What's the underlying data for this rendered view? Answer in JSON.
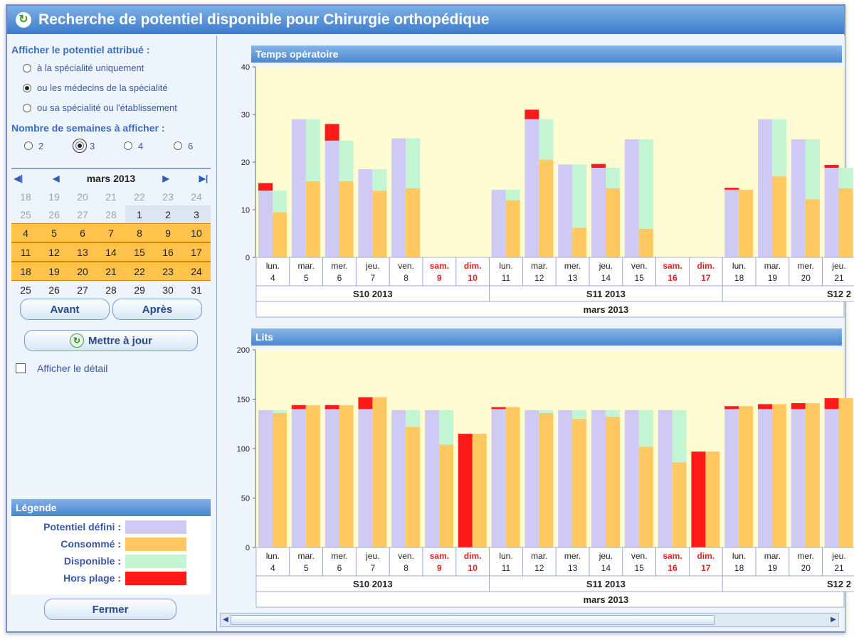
{
  "window": {
    "title": "Recherche de potentiel disponible pour Chirurgie orthopédique"
  },
  "filters": {
    "afficher_title": "Afficher le potentiel attribué :",
    "options": [
      {
        "label": "à la spécialité uniquement",
        "selected": false
      },
      {
        "label": "ou les médecins de la spécialité",
        "selected": true
      },
      {
        "label": "ou sa spécialité ou l'établissement",
        "selected": false
      }
    ],
    "weeks_title": "Nombre de semaines à afficher :",
    "weeks": [
      {
        "label": "2",
        "selected": false
      },
      {
        "label": "3",
        "selected": true
      },
      {
        "label": "4",
        "selected": false
      },
      {
        "label": "6",
        "selected": false
      }
    ]
  },
  "calendar": {
    "month": "mars 2013",
    "nav": [
      "first",
      "prev",
      "next",
      "last"
    ],
    "rows": [
      [
        {
          "d": "18",
          "s": "muted"
        },
        {
          "d": "19",
          "s": "muted"
        },
        {
          "d": "20",
          "s": "muted"
        },
        {
          "d": "21",
          "s": "muted"
        },
        {
          "d": "22",
          "s": "muted"
        },
        {
          "d": "23",
          "s": "muted"
        },
        {
          "d": "24",
          "s": "muted"
        }
      ],
      [
        {
          "d": "25",
          "s": "muted"
        },
        {
          "d": "26",
          "s": "muted"
        },
        {
          "d": "27",
          "s": "muted"
        },
        {
          "d": "28",
          "s": "muted"
        },
        {
          "d": "1",
          "s": "pre"
        },
        {
          "d": "2",
          "s": "pre"
        },
        {
          "d": "3",
          "s": "pre"
        }
      ],
      [
        {
          "d": "4",
          "s": "cur"
        },
        {
          "d": "5",
          "s": "cur"
        },
        {
          "d": "6",
          "s": "cur"
        },
        {
          "d": "7",
          "s": "cur"
        },
        {
          "d": "8",
          "s": "cur"
        },
        {
          "d": "9",
          "s": "cur"
        },
        {
          "d": "10",
          "s": "cur"
        }
      ],
      [
        {
          "d": "11",
          "s": "cur"
        },
        {
          "d": "12",
          "s": "cur"
        },
        {
          "d": "13",
          "s": "cur"
        },
        {
          "d": "14",
          "s": "cur"
        },
        {
          "d": "15",
          "s": "cur"
        },
        {
          "d": "16",
          "s": "cur"
        },
        {
          "d": "17",
          "s": "cur"
        }
      ],
      [
        {
          "d": "18",
          "s": "cur"
        },
        {
          "d": "19",
          "s": "cur"
        },
        {
          "d": "20",
          "s": "cur"
        },
        {
          "d": "21",
          "s": "cur"
        },
        {
          "d": "22",
          "s": "cur"
        },
        {
          "d": "23",
          "s": "cur"
        },
        {
          "d": "24",
          "s": "cur"
        }
      ],
      [
        {
          "d": "25",
          "s": "normal"
        },
        {
          "d": "26",
          "s": "normal"
        },
        {
          "d": "27",
          "s": "normal"
        },
        {
          "d": "28",
          "s": "normal"
        },
        {
          "d": "29",
          "s": "normal"
        },
        {
          "d": "30",
          "s": "normal"
        },
        {
          "d": "31",
          "s": "normal"
        }
      ]
    ]
  },
  "buttons": {
    "avant": "Avant",
    "apres": "Après",
    "update": "Mettre à jour",
    "close": "Fermer"
  },
  "detail_checkbox": "Afficher le détail",
  "legend": {
    "title": "Légende",
    "items": [
      {
        "label": "Potentiel défini :",
        "color": "#cfcaf5"
      },
      {
        "label": "Consommé :",
        "color": "#ffc860"
      },
      {
        "label": "Disponible :",
        "color": "#c2f5d2"
      },
      {
        "label": "Hors plage :",
        "color": "#ff1a1a"
      }
    ]
  },
  "colors": {
    "defined": "#cfcaf5",
    "consumed": "#ffc860",
    "available": "#c2f5d2",
    "offhours": "#ff1a1a",
    "plot_bg": "#fffbd2",
    "weekend_text": "#e02020"
  },
  "chart_data": [
    {
      "type": "bar",
      "title": "Temps opératoire",
      "ylim": [
        0,
        40
      ],
      "yticks": [
        "0",
        "10",
        "20",
        "30",
        "40"
      ],
      "month_label": "mars 2013",
      "weeks": [
        "S10 2013",
        "S11 2013",
        "S12 2"
      ],
      "days": [
        {
          "name": "lun.",
          "num": "4",
          "weekend": false,
          "defined": 14,
          "consumed": 9.5,
          "off": 1.6
        },
        {
          "name": "mar.",
          "num": "5",
          "weekend": false,
          "defined": 29,
          "consumed": 16,
          "off": 0
        },
        {
          "name": "mer.",
          "num": "6",
          "weekend": false,
          "defined": 24.5,
          "consumed": 16,
          "off": 3.5
        },
        {
          "name": "jeu.",
          "num": "7",
          "weekend": false,
          "defined": 18.5,
          "consumed": 14,
          "off": 0
        },
        {
          "name": "ven.",
          "num": "8",
          "weekend": false,
          "defined": 25,
          "consumed": 14.5,
          "off": 0
        },
        {
          "name": "sam.",
          "num": "9",
          "weekend": true,
          "defined": 0,
          "consumed": 0,
          "off": 0
        },
        {
          "name": "dim.",
          "num": "10",
          "weekend": true,
          "defined": 0,
          "consumed": 0,
          "off": 0
        },
        {
          "name": "lun.",
          "num": "11",
          "weekend": false,
          "defined": 14.2,
          "consumed": 12,
          "off": 0
        },
        {
          "name": "mar.",
          "num": "12",
          "weekend": false,
          "defined": 29,
          "consumed": 20.5,
          "off": 2
        },
        {
          "name": "mer.",
          "num": "13",
          "weekend": false,
          "defined": 19.5,
          "consumed": 6.2,
          "off": 0
        },
        {
          "name": "jeu.",
          "num": "14",
          "weekend": false,
          "defined": 18.8,
          "consumed": 14.5,
          "off": 0.8
        },
        {
          "name": "ven.",
          "num": "15",
          "weekend": false,
          "defined": 24.8,
          "consumed": 6,
          "off": 0
        },
        {
          "name": "sam.",
          "num": "16",
          "weekend": true,
          "defined": 0,
          "consumed": 0,
          "off": 0
        },
        {
          "name": "dim.",
          "num": "17",
          "weekend": true,
          "defined": 0,
          "consumed": 0,
          "off": 0
        },
        {
          "name": "lun.",
          "num": "18",
          "weekend": false,
          "defined": 14.2,
          "consumed": 14.2,
          "off": 0.4
        },
        {
          "name": "mar.",
          "num": "19",
          "weekend": false,
          "defined": 29,
          "consumed": 17,
          "off": 0
        },
        {
          "name": "mer.",
          "num": "20",
          "weekend": false,
          "defined": 24.8,
          "consumed": 12.2,
          "off": 0
        },
        {
          "name": "jeu.",
          "num": "21",
          "weekend": false,
          "defined": 18.8,
          "consumed": 14.5,
          "off": 0.6
        }
      ]
    },
    {
      "type": "bar",
      "title": "Lits",
      "ylim": [
        0,
        200
      ],
      "yticks": [
        "0",
        "50",
        "100",
        "150",
        "200"
      ],
      "month_label": "mars 2013",
      "weeks": [
        "S10 2013",
        "S11 2013",
        "S12 2"
      ],
      "days": [
        {
          "name": "lun.",
          "num": "4",
          "weekend": false,
          "defined": 139,
          "consumed": 136,
          "off": 0
        },
        {
          "name": "mar.",
          "num": "5",
          "weekend": false,
          "defined": 140,
          "consumed": 144,
          "off": 4
        },
        {
          "name": "mer.",
          "num": "6",
          "weekend": false,
          "defined": 140,
          "consumed": 144,
          "off": 4
        },
        {
          "name": "jeu.",
          "num": "7",
          "weekend": false,
          "defined": 140,
          "consumed": 152,
          "off": 12
        },
        {
          "name": "ven.",
          "num": "8",
          "weekend": false,
          "defined": 139,
          "consumed": 122,
          "off": 0
        },
        {
          "name": "sam.",
          "num": "9",
          "weekend": true,
          "defined": 139,
          "consumed": 104,
          "off": 0
        },
        {
          "name": "dim.",
          "num": "10",
          "weekend": true,
          "defined": 0,
          "consumed": 115,
          "off": 115
        },
        {
          "name": "lun.",
          "num": "11",
          "weekend": false,
          "defined": 140,
          "consumed": 142,
          "off": 2
        },
        {
          "name": "mar.",
          "num": "12",
          "weekend": false,
          "defined": 139,
          "consumed": 136,
          "off": 0
        },
        {
          "name": "mer.",
          "num": "13",
          "weekend": false,
          "defined": 139,
          "consumed": 130,
          "off": 0
        },
        {
          "name": "jeu.",
          "num": "14",
          "weekend": false,
          "defined": 139,
          "consumed": 132,
          "off": 0
        },
        {
          "name": "ven.",
          "num": "15",
          "weekend": false,
          "defined": 139,
          "consumed": 102,
          "off": 0
        },
        {
          "name": "sam.",
          "num": "16",
          "weekend": true,
          "defined": 139,
          "consumed": 86,
          "off": 0
        },
        {
          "name": "dim.",
          "num": "17",
          "weekend": true,
          "defined": 0,
          "consumed": 97,
          "off": 97
        },
        {
          "name": "lun.",
          "num": "18",
          "weekend": false,
          "defined": 140,
          "consumed": 143,
          "off": 3
        },
        {
          "name": "mar.",
          "num": "19",
          "weekend": false,
          "defined": 140,
          "consumed": 145,
          "off": 5
        },
        {
          "name": "mer.",
          "num": "20",
          "weekend": false,
          "defined": 140,
          "consumed": 146,
          "off": 6
        },
        {
          "name": "jeu.",
          "num": "21",
          "weekend": false,
          "defined": 140,
          "consumed": 151,
          "off": 11
        }
      ]
    }
  ]
}
